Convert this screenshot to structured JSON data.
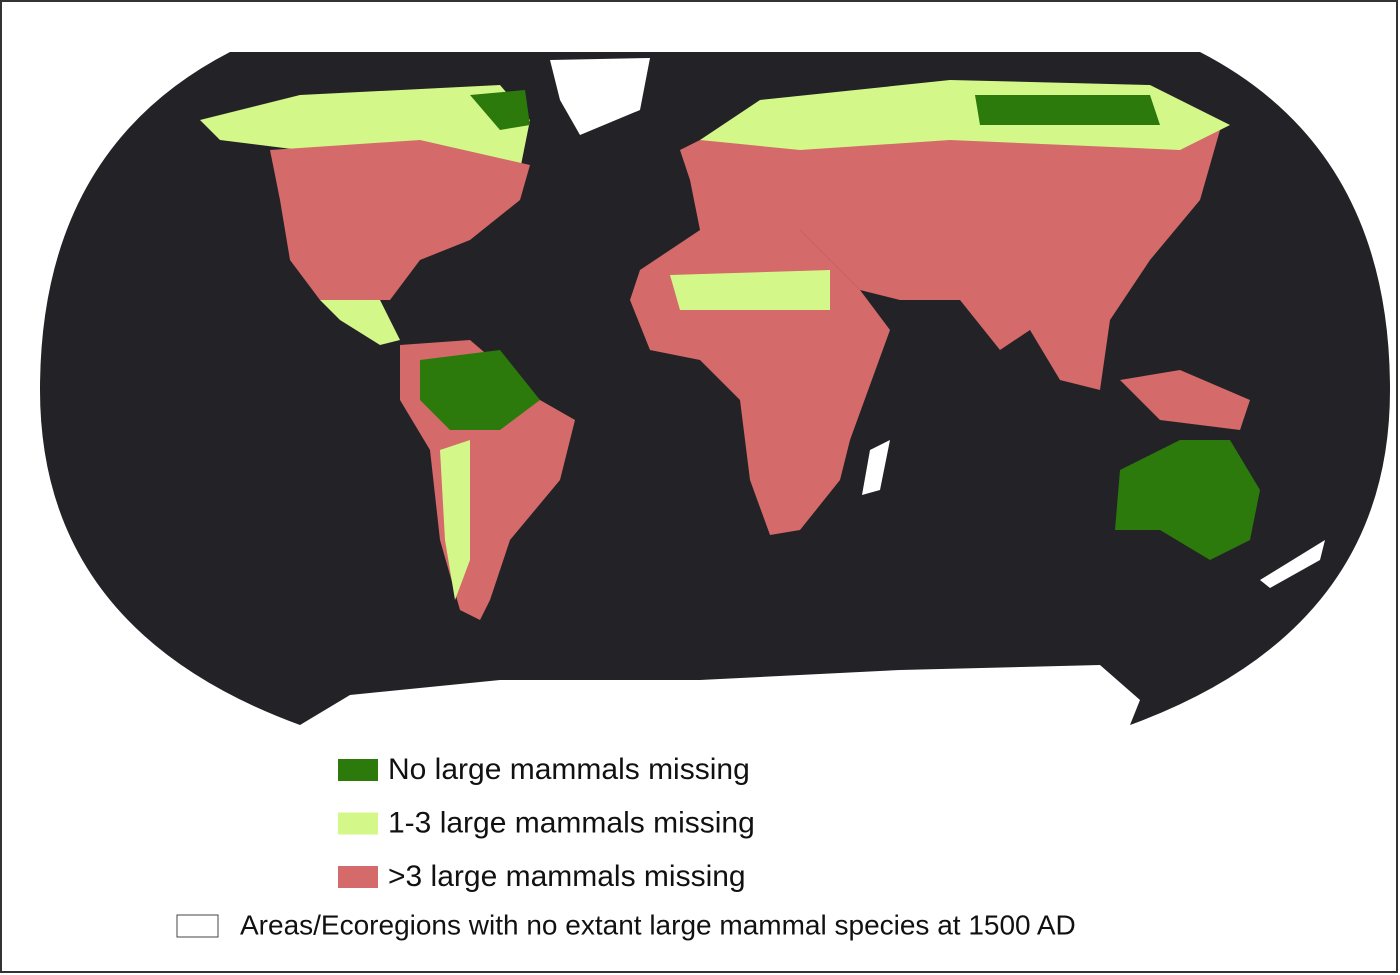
{
  "legend": [
    {
      "label": "No large mammals missing",
      "color": "#2b7a0b"
    },
    {
      "label": "1-3 large mammals missing",
      "color": "#d4f78a"
    },
    {
      "label": ">3 large mammals missing",
      "color": "#d46a6a"
    }
  ],
  "note": {
    "label": "Areas/Ecoregions with no extant large mammal species at 1500 AD",
    "color": "#ffffff"
  }
}
